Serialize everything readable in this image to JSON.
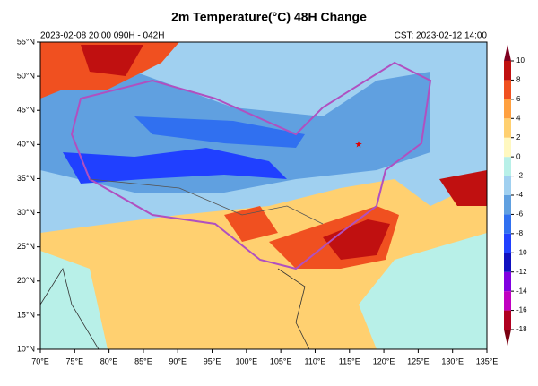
{
  "title": "2m Temperature(°C) 48H Change",
  "subtitle_left": "2023-02-08 20:00  090H - 042H",
  "subtitle_right": "CST: 2023-02-12 14:00",
  "map": {
    "xlim": [
      70,
      135
    ],
    "ylim": [
      10,
      55
    ],
    "xticks": [
      {
        "value": 70,
        "label": "70°E"
      },
      {
        "value": 75,
        "label": "75°E"
      },
      {
        "value": 80,
        "label": "80°E"
      },
      {
        "value": 85,
        "label": "85°E"
      },
      {
        "value": 90,
        "label": "90°E"
      },
      {
        "value": 95,
        "label": "95°E"
      },
      {
        "value": 100,
        "label": "100°E"
      },
      {
        "value": 105,
        "label": "105°E"
      },
      {
        "value": 110,
        "label": "110°E"
      },
      {
        "value": 115,
        "label": "115°E"
      },
      {
        "value": 120,
        "label": "120°E"
      },
      {
        "value": 125,
        "label": "125°E"
      },
      {
        "value": 130,
        "label": "130°E"
      },
      {
        "value": 135,
        "label": "135°E"
      }
    ],
    "yticks": [
      {
        "value": 10,
        "label": "10°N"
      },
      {
        "value": 15,
        "label": "15°N"
      },
      {
        "value": 20,
        "label": "20°N"
      },
      {
        "value": 25,
        "label": "25°N"
      },
      {
        "value": 30,
        "label": "30°N"
      },
      {
        "value": 35,
        "label": "35°N"
      },
      {
        "value": 40,
        "label": "40°N"
      },
      {
        "value": 45,
        "label": "45°N"
      },
      {
        "value": 50,
        "label": "50°N"
      },
      {
        "value": 55,
        "label": "55°N"
      }
    ]
  },
  "colorbar": {
    "levels": [
      -18,
      -16,
      -14,
      -12,
      -10,
      -8,
      -6,
      -4,
      -2,
      0,
      2,
      4,
      6,
      8,
      10
    ],
    "colors": [
      "#7a0010",
      "#b00020",
      "#c000c0",
      "#8000e0",
      "#1010c0",
      "#2040ff",
      "#3070f0",
      "#60a0e0",
      "#a0d0f0",
      "#b8f0e8",
      "#fff8c0",
      "#ffd070",
      "#ffa040",
      "#f05020",
      "#c01010",
      "#800020"
    ]
  }
}
